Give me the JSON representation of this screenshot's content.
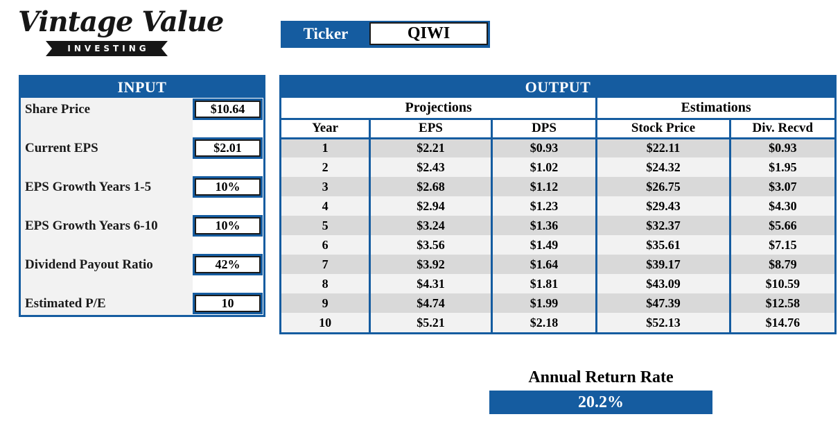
{
  "logo": {
    "brand_script": "Vintage Value",
    "brand_sub": "INVESTING"
  },
  "ticker": {
    "label": "Ticker",
    "value": "QIWI"
  },
  "input_panel": {
    "title": "INPUT",
    "fields": [
      {
        "label": "Share Price",
        "value": "$10.64"
      },
      {
        "label": "Current EPS",
        "value": "$2.01"
      },
      {
        "label": "EPS Growth Years 1-5",
        "value": "10%"
      },
      {
        "label": "EPS Growth Years 6-10",
        "value": "10%"
      },
      {
        "label": "Dividend Payout Ratio",
        "value": "42%"
      },
      {
        "label": "Estimated P/E",
        "value": "10"
      }
    ]
  },
  "output_panel": {
    "title": "OUTPUT",
    "group_headers": [
      "Projections",
      "Estimations"
    ],
    "columns": [
      "Year",
      "EPS",
      "DPS",
      "Stock Price",
      "Div. Recvd"
    ],
    "rows": [
      [
        "1",
        "$2.21",
        "$0.93",
        "$22.11",
        "$0.93"
      ],
      [
        "2",
        "$2.43",
        "$1.02",
        "$24.32",
        "$1.95"
      ],
      [
        "3",
        "$2.68",
        "$1.12",
        "$26.75",
        "$3.07"
      ],
      [
        "4",
        "$2.94",
        "$1.23",
        "$29.43",
        "$4.30"
      ],
      [
        "5",
        "$3.24",
        "$1.36",
        "$32.37",
        "$5.66"
      ],
      [
        "6",
        "$3.56",
        "$1.49",
        "$35.61",
        "$7.15"
      ],
      [
        "7",
        "$3.92",
        "$1.64",
        "$39.17",
        "$8.79"
      ],
      [
        "8",
        "$4.31",
        "$1.81",
        "$43.09",
        "$10.59"
      ],
      [
        "9",
        "$4.74",
        "$1.99",
        "$47.39",
        "$12.58"
      ],
      [
        "10",
        "$5.21",
        "$2.18",
        "$52.13",
        "$14.76"
      ]
    ]
  },
  "annual_return": {
    "label": "Annual Return Rate",
    "value": "20.2%"
  },
  "colors": {
    "accent_blue": "#155CA0",
    "row_dark": "#d9d9d9",
    "row_light": "#f2f2f2",
    "ribbon_black": "#161616"
  }
}
